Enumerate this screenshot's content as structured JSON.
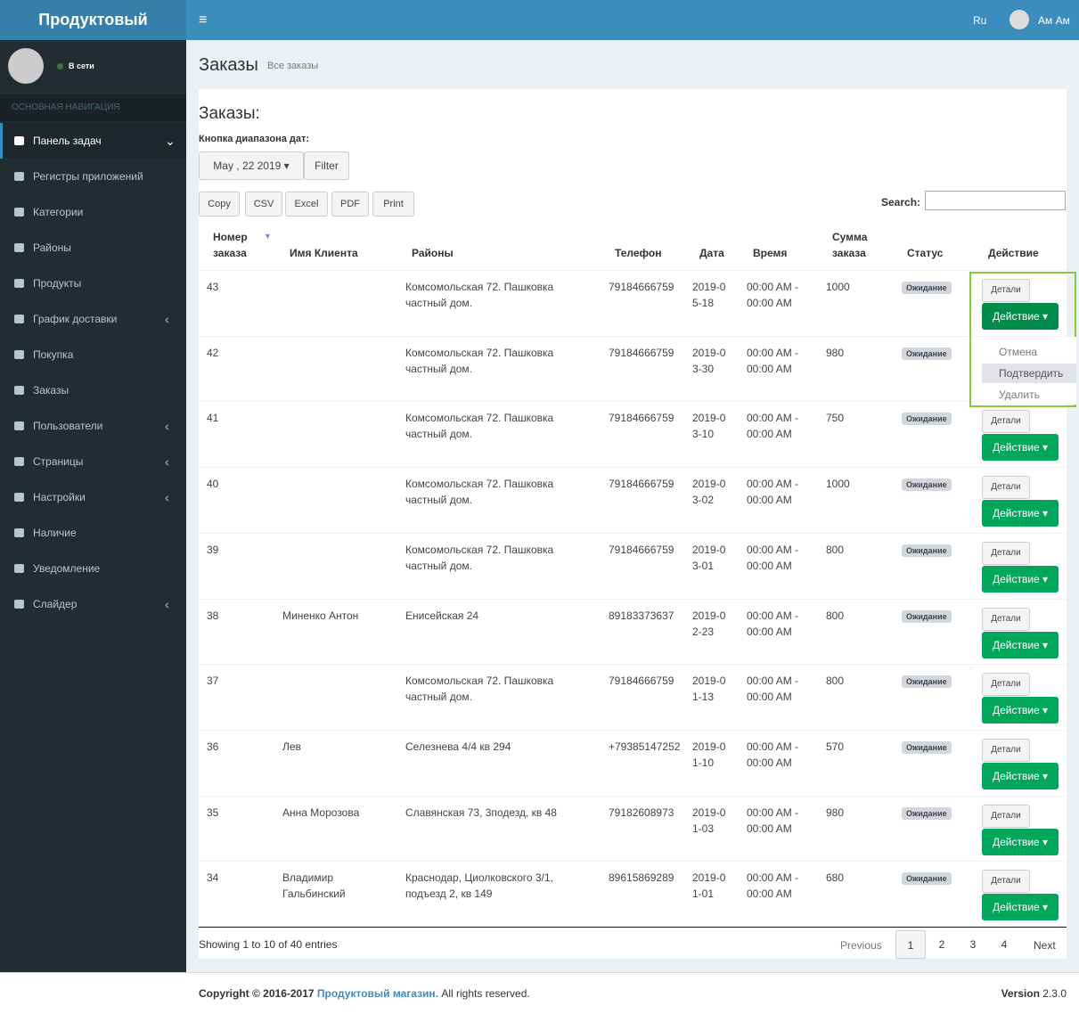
{
  "header": {
    "brand": "Продуктовый",
    "lang": "Ru",
    "user": "Ам Ам"
  },
  "sidebar": {
    "status": "В сети",
    "nav_title": "ОСНОВНАЯ НАВИГАЦИЯ",
    "items": [
      "Панель задач",
      "Регистры приложений",
      "Категории",
      "Районы",
      "Продукты",
      "График доставки",
      "Покупка",
      "Заказы",
      "Пользователи",
      "Страницы",
      "Настройки",
      "Наличие",
      "Уведомление",
      "Слайдер"
    ]
  },
  "page": {
    "title": "Заказы",
    "subtitle": "Все заказы",
    "heading": "Заказы:",
    "date_label": "Кнопка диапазона дат:",
    "date_button": "May , 22 2019",
    "filter": "Filter",
    "export_buttons": [
      "Copy",
      "CSV",
      "Excel",
      "PDF",
      "Print"
    ],
    "search_label": "Search:"
  },
  "table": {
    "columns": [
      "Номер заказа",
      "Имя Клиента",
      "Районы",
      "Телефон",
      "Дата",
      "Время",
      "Сумма заказа",
      "Статус",
      "Действие"
    ],
    "details_button": "Детали",
    "action_button": "Действие",
    "dropdown": [
      "Отмена",
      "Подтвердить",
      "Удалить"
    ],
    "rows": [
      {
        "id": "43",
        "client": null,
        "district": "Комсомольская 72. Пашковка частный дом.",
        "phone": "79184666759",
        "date": "2019-05-18",
        "time": "00:00 AM - 00:00 AM",
        "amount": "1000",
        "status": "Ожидание"
      },
      {
        "id": "42",
        "client": null,
        "district": "Комсомольская 72. Пашковка частный дом.",
        "phone": "79184666759",
        "date": "2019-03-30",
        "time": "00:00 AM - 00:00 AM",
        "amount": "980",
        "status": "Ожидание"
      },
      {
        "id": "41",
        "client": null,
        "district": "Комсомольская 72. Пашковка частный дом.",
        "phone": "79184666759",
        "date": "2019-03-10",
        "time": "00:00 AM - 00:00 AM",
        "amount": "750",
        "status": "Ожидание"
      },
      {
        "id": "40",
        "client": null,
        "district": "Комсомольская 72. Пашковка частный дом.",
        "phone": "79184666759",
        "date": "2019-03-02",
        "time": "00:00 AM - 00:00 AM",
        "amount": "1000",
        "status": "Ожидание"
      },
      {
        "id": "39",
        "client": null,
        "district": "Комсомольская 72. Пашковка частный дом.",
        "phone": "79184666759",
        "date": "2019-03-01",
        "time": "00:00 AM - 00:00 AM",
        "amount": "800",
        "status": "Ожидание"
      },
      {
        "id": "38",
        "client": "Миненко Антон",
        "district": "Енисейская 24",
        "phone": "89183373637",
        "date": "2019-02-23",
        "time": "00:00 AM - 00:00 AM",
        "amount": "800",
        "status": "Ожидание"
      },
      {
        "id": "37",
        "client": null,
        "district": "Комсомольская 72. Пашковка частный дом.",
        "phone": "79184666759",
        "date": "2019-01-13",
        "time": "00:00 AM - 00:00 AM",
        "amount": "800",
        "status": "Ожидание"
      },
      {
        "id": "36",
        "client": "Лев",
        "district": "Селезнева 4/4 кв 294",
        "phone": "+79385147252",
        "date": "2019-01-10",
        "time": "00:00 AM - 00:00 AM",
        "amount": "570",
        "status": "Ожидание"
      },
      {
        "id": "35",
        "client": "Анна Морозова",
        "district": "Славянская 73, 3подезд, кв 48",
        "phone": "79182608973",
        "date": "2019-01-03",
        "time": "00:00 AM - 00:00 AM",
        "amount": "980",
        "status": "Ожидание"
      },
      {
        "id": "34",
        "client": "Владимир Гальбинский",
        "district": "Краснодар, Циолковского 3/1, подъезд 2, кв 149",
        "phone": "89615869289",
        "date": "2019-01-01",
        "time": "00:00 AM - 00:00 AM",
        "amount": "680",
        "status": "Ожидание"
      }
    ]
  },
  "pagination": {
    "info": "Showing 1 to 10 of 40 entries",
    "previous": "Previous",
    "pages": [
      "1",
      "2",
      "3",
      "4"
    ],
    "next": "Next"
  },
  "footer": {
    "copyright": "Copyright © 2016-2017",
    "link": "Продуктовый магазин.",
    "rights": "All rights reserved.",
    "version_label": "Version",
    "version": "2.3.0"
  }
}
